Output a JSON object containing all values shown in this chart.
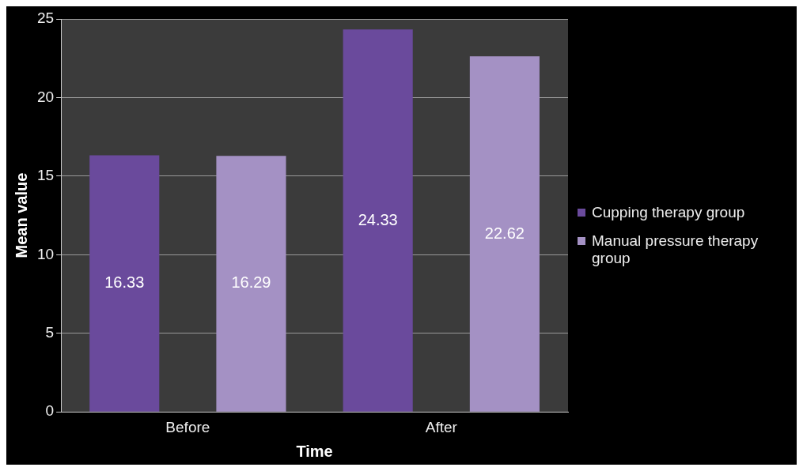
{
  "chart_data": {
    "type": "bar",
    "xlabel": "Time",
    "ylabel": "Mean value",
    "categories": [
      "Before",
      "After"
    ],
    "series": [
      {
        "name": "Cupping therapy group",
        "color": "#6a4a9c",
        "values": [
          16.33,
          24.33
        ]
      },
      {
        "name": "Manual pressure therapy group",
        "color": "#a491c4",
        "values": [
          16.29,
          22.62
        ]
      }
    ],
    "ylim": [
      0,
      25
    ],
    "yticks": [
      0,
      5,
      10,
      15,
      20,
      25
    ],
    "grid": "y",
    "legend": "right",
    "data_labels": true
  }
}
